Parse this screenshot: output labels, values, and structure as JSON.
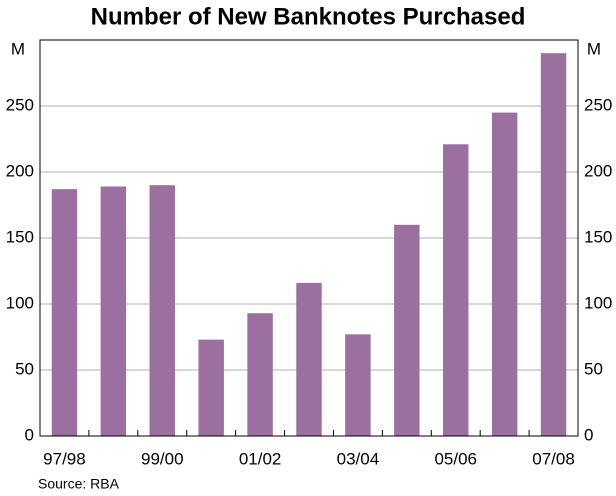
{
  "chart_data": {
    "type": "bar",
    "title": "Number of New Banknotes Purchased",
    "ylabel": "M",
    "y2label": "M",
    "categories": [
      "97/98",
      null,
      "99/00",
      null,
      "01/02",
      null,
      "03/04",
      null,
      "05/06",
      null,
      "07/08"
    ],
    "values": [
      187,
      189,
      190,
      73,
      93,
      116,
      77,
      160,
      221,
      245,
      290
    ],
    "color": "#9b6fa0",
    "ylim": [
      0,
      300
    ],
    "yticks": [
      0,
      50,
      100,
      150,
      200,
      250
    ],
    "y2lim": [
      0,
      300
    ],
    "y2ticks": [
      0,
      50,
      100,
      150,
      200,
      250
    ],
    "grid": true,
    "source": "Source: RBA"
  }
}
